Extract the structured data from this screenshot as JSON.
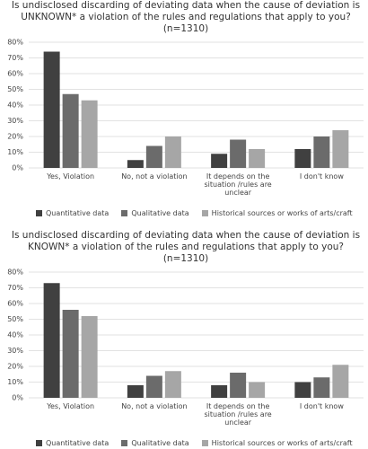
{
  "chart_data": [
    {
      "type": "bar",
      "title": "Is undisclosed discarding of deviating data when the cause of deviation is UNKNOWN* a violation of the rules and regulations that apply to you? (n=1310)",
      "categories": [
        "Yes, Violation",
        "No, not a violation",
        "It depends on the situation /rules are unclear",
        "I don't know"
      ],
      "series": [
        {
          "name": "Quantitative data",
          "color": "#404040",
          "values": [
            74,
            5,
            9,
            12
          ]
        },
        {
          "name": "Qualitative data",
          "color": "#6b6b6b",
          "values": [
            47,
            14,
            18,
            20
          ]
        },
        {
          "name": "Historical sources or works of arts/craft",
          "color": "#a6a6a6",
          "values": [
            43,
            20,
            12,
            24
          ]
        }
      ],
      "ylim": [
        0,
        80
      ],
      "yticks": [
        {
          "value": 0,
          "label": "0%"
        },
        {
          "value": 10,
          "label": "10%"
        },
        {
          "value": 20,
          "label": "20%"
        },
        {
          "value": 30,
          "label": "30%"
        },
        {
          "value": 40,
          "label": "40%"
        },
        {
          "value": 50,
          "label": "50%"
        },
        {
          "value": 60,
          "label": "60%"
        },
        {
          "value": 70,
          "label": "70%"
        },
        {
          "value": 80,
          "label": "80%"
        }
      ],
      "grid": true
    },
    {
      "type": "bar",
      "title": "Is undisclosed discarding of deviating data when the cause of deviation is KNOWN* a violation of the rules and regulations that apply to you? (n=1310)",
      "categories": [
        "Yes, Violation",
        "No, not a violation",
        "It depends on the situation /rules are unclear",
        "I don't know"
      ],
      "series": [
        {
          "name": "Quantitative data",
          "color": "#404040",
          "values": [
            73,
            8,
            8,
            10
          ]
        },
        {
          "name": "Qualitative data",
          "color": "#6b6b6b",
          "values": [
            56,
            14,
            16,
            13
          ]
        },
        {
          "name": "Historical sources or works of arts/craft",
          "color": "#a6a6a6",
          "values": [
            52,
            17,
            10,
            21
          ]
        }
      ],
      "ylim": [
        0,
        80
      ],
      "yticks": [
        {
          "value": 0,
          "label": "0%"
        },
        {
          "value": 10,
          "label": "10%"
        },
        {
          "value": 20,
          "label": "20%"
        },
        {
          "value": 30,
          "label": "30%"
        },
        {
          "value": 40,
          "label": "40%"
        },
        {
          "value": 50,
          "label": "50%"
        },
        {
          "value": 60,
          "label": "60%"
        },
        {
          "value": 70,
          "label": "70%"
        },
        {
          "value": 80,
          "label": "80%"
        }
      ],
      "grid": true
    }
  ]
}
